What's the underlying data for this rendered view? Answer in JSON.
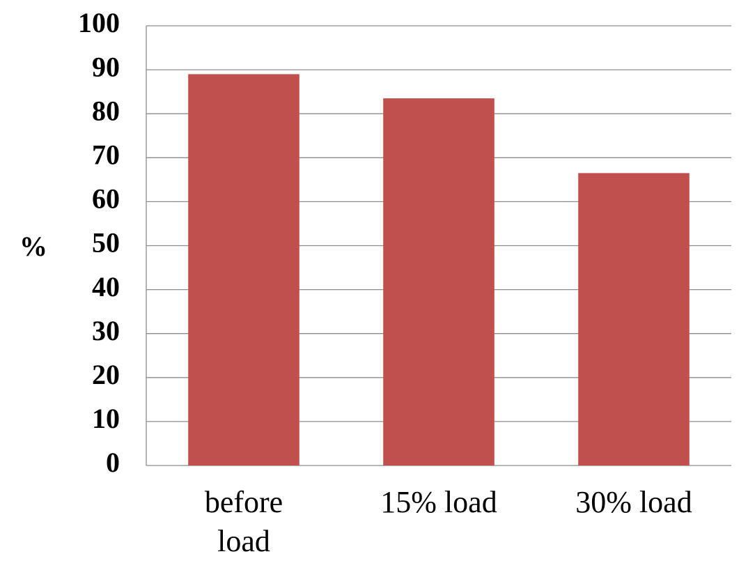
{
  "chart_data": {
    "type": "bar",
    "y_label": "%",
    "categories": [
      "before load",
      "15% load",
      "30% load"
    ],
    "values": [
      89,
      83.5,
      66.5
    ],
    "color": "#c0504d",
    "ylim": [
      0,
      100
    ],
    "yticks": [
      0,
      10,
      20,
      30,
      40,
      50,
      60,
      70,
      80,
      90,
      100
    ],
    "grid": true
  }
}
